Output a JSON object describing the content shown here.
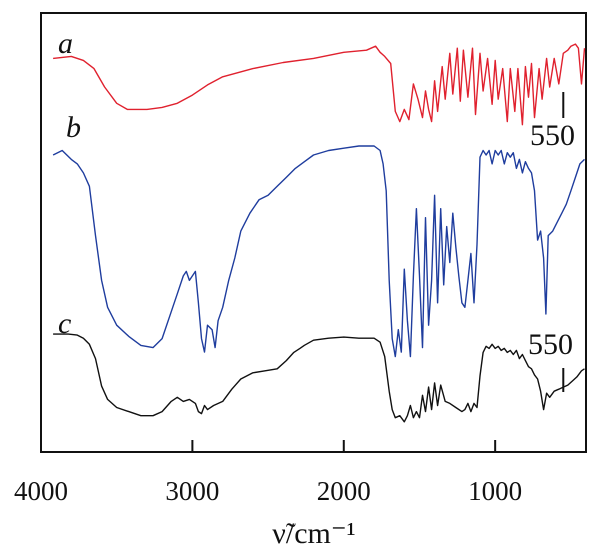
{
  "chart_data": {
    "type": "line",
    "title": "",
    "xlabel": "ν̃/cm⁻¹",
    "ylabel": "",
    "xlim": [
      4000,
      400
    ],
    "x_reversed": true,
    "xticks": [
      {
        "value": 4000,
        "label": "4000"
      },
      {
        "value": 3000,
        "label": "3000"
      },
      {
        "value": 2000,
        "label": "2000"
      },
      {
        "value": 1000,
        "label": "1000"
      }
    ],
    "y_axis": "relative transmittance (curves offset vertically, no scale shown)",
    "grid": false,
    "legend": "none",
    "series": [
      {
        "name": "a",
        "color": "#e0212e",
        "points": [
          [
            3920,
            0.8
          ],
          [
            3800,
            0.82
          ],
          [
            3720,
            0.78
          ],
          [
            3650,
            0.7
          ],
          [
            3580,
            0.52
          ],
          [
            3500,
            0.36
          ],
          [
            3430,
            0.3
          ],
          [
            3300,
            0.3
          ],
          [
            3200,
            0.32
          ],
          [
            3100,
            0.36
          ],
          [
            3000,
            0.44
          ],
          [
            2900,
            0.54
          ],
          [
            2800,
            0.62
          ],
          [
            2600,
            0.7
          ],
          [
            2400,
            0.76
          ],
          [
            2200,
            0.8
          ],
          [
            2000,
            0.86
          ],
          [
            1850,
            0.88
          ],
          [
            1790,
            0.92
          ],
          [
            1760,
            0.86
          ],
          [
            1730,
            0.82
          ],
          [
            1690,
            0.75
          ],
          [
            1660,
            0.28
          ],
          [
            1630,
            0.18
          ],
          [
            1600,
            0.3
          ],
          [
            1570,
            0.2
          ],
          [
            1540,
            0.55
          ],
          [
            1510,
            0.4
          ],
          [
            1480,
            0.22
          ],
          [
            1460,
            0.48
          ],
          [
            1440,
            0.3
          ],
          [
            1420,
            0.18
          ],
          [
            1400,
            0.58
          ],
          [
            1380,
            0.28
          ],
          [
            1350,
            0.72
          ],
          [
            1330,
            0.4
          ],
          [
            1300,
            0.85
          ],
          [
            1280,
            0.45
          ],
          [
            1250,
            0.9
          ],
          [
            1230,
            0.38
          ],
          [
            1210,
            0.88
          ],
          [
            1180,
            0.42
          ],
          [
            1150,
            0.9
          ],
          [
            1130,
            0.25
          ],
          [
            1100,
            0.85
          ],
          [
            1080,
            0.48
          ],
          [
            1050,
            0.8
          ],
          [
            1020,
            0.35
          ],
          [
            1000,
            0.78
          ],
          [
            980,
            0.4
          ],
          [
            950,
            0.7
          ],
          [
            920,
            0.18
          ],
          [
            900,
            0.7
          ],
          [
            870,
            0.28
          ],
          [
            850,
            0.7
          ],
          [
            820,
            0.15
          ],
          [
            800,
            0.72
          ],
          [
            780,
            0.42
          ],
          [
            760,
            0.75
          ],
          [
            740,
            0.22
          ],
          [
            710,
            0.7
          ],
          [
            690,
            0.4
          ],
          [
            660,
            0.8
          ],
          [
            640,
            0.52
          ],
          [
            610,
            0.8
          ],
          [
            580,
            0.55
          ],
          [
            550,
            0.85
          ],
          [
            520,
            0.88
          ],
          [
            500,
            0.92
          ],
          [
            470,
            0.94
          ],
          [
            450,
            0.9
          ],
          [
            430,
            0.55
          ],
          [
            410,
            0.9
          ]
        ]
      },
      {
        "name": "b",
        "color": "#1f3d9e",
        "points": [
          [
            3920,
            0.96
          ],
          [
            3860,
            0.98
          ],
          [
            3800,
            0.94
          ],
          [
            3760,
            0.92
          ],
          [
            3720,
            0.88
          ],
          [
            3680,
            0.82
          ],
          [
            3640,
            0.6
          ],
          [
            3600,
            0.4
          ],
          [
            3560,
            0.28
          ],
          [
            3500,
            0.2
          ],
          [
            3420,
            0.15
          ],
          [
            3340,
            0.11
          ],
          [
            3260,
            0.1
          ],
          [
            3200,
            0.14
          ],
          [
            3140,
            0.26
          ],
          [
            3100,
            0.34
          ],
          [
            3060,
            0.42
          ],
          [
            3040,
            0.44
          ],
          [
            3020,
            0.4
          ],
          [
            3000,
            0.42
          ],
          [
            2980,
            0.44
          ],
          [
            2960,
            0.3
          ],
          [
            2940,
            0.14
          ],
          [
            2920,
            0.08
          ],
          [
            2900,
            0.2
          ],
          [
            2870,
            0.18
          ],
          [
            2850,
            0.1
          ],
          [
            2830,
            0.22
          ],
          [
            2800,
            0.28
          ],
          [
            2760,
            0.4
          ],
          [
            2720,
            0.5
          ],
          [
            2680,
            0.62
          ],
          [
            2620,
            0.7
          ],
          [
            2560,
            0.76
          ],
          [
            2500,
            0.78
          ],
          [
            2440,
            0.82
          ],
          [
            2380,
            0.86
          ],
          [
            2320,
            0.9
          ],
          [
            2260,
            0.93
          ],
          [
            2200,
            0.96
          ],
          [
            2100,
            0.98
          ],
          [
            2000,
            0.99
          ],
          [
            1900,
            1.0
          ],
          [
            1800,
            1.0
          ],
          [
            1760,
            0.98
          ],
          [
            1740,
            0.92
          ],
          [
            1720,
            0.8
          ],
          [
            1700,
            0.4
          ],
          [
            1680,
            0.14
          ],
          [
            1660,
            0.06
          ],
          [
            1640,
            0.18
          ],
          [
            1620,
            0.08
          ],
          [
            1600,
            0.45
          ],
          [
            1580,
            0.22
          ],
          [
            1560,
            0.06
          ],
          [
            1540,
            0.42
          ],
          [
            1520,
            0.72
          ],
          [
            1500,
            0.42
          ],
          [
            1480,
            0.1
          ],
          [
            1460,
            0.68
          ],
          [
            1440,
            0.2
          ],
          [
            1420,
            0.4
          ],
          [
            1400,
            0.78
          ],
          [
            1380,
            0.3
          ],
          [
            1360,
            0.72
          ],
          [
            1340,
            0.38
          ],
          [
            1320,
            0.64
          ],
          [
            1300,
            0.48
          ],
          [
            1280,
            0.7
          ],
          [
            1260,
            0.55
          ],
          [
            1240,
            0.42
          ],
          [
            1220,
            0.3
          ],
          [
            1200,
            0.28
          ],
          [
            1180,
            0.4
          ],
          [
            1160,
            0.52
          ],
          [
            1140,
            0.3
          ],
          [
            1120,
            0.56
          ],
          [
            1100,
            0.95
          ],
          [
            1080,
            0.98
          ],
          [
            1060,
            0.96
          ],
          [
            1040,
            0.98
          ],
          [
            1020,
            0.92
          ],
          [
            1000,
            0.98
          ],
          [
            980,
            0.96
          ],
          [
            960,
            0.98
          ],
          [
            940,
            0.92
          ],
          [
            920,
            0.97
          ],
          [
            900,
            0.95
          ],
          [
            880,
            0.97
          ],
          [
            860,
            0.9
          ],
          [
            840,
            0.94
          ],
          [
            820,
            0.88
          ],
          [
            800,
            0.93
          ],
          [
            780,
            0.9
          ],
          [
            760,
            0.88
          ],
          [
            740,
            0.8
          ],
          [
            720,
            0.58
          ],
          [
            700,
            0.62
          ],
          [
            680,
            0.5
          ],
          [
            665,
            0.25
          ],
          [
            650,
            0.6
          ],
          [
            620,
            0.62
          ],
          [
            590,
            0.66
          ],
          [
            560,
            0.7
          ],
          [
            530,
            0.74
          ],
          [
            500,
            0.8
          ],
          [
            470,
            0.86
          ],
          [
            440,
            0.92
          ],
          [
            410,
            0.94
          ]
        ]
      },
      {
        "name": "c",
        "color": "#111111",
        "points": [
          [
            3920,
            0.96
          ],
          [
            3820,
            0.96
          ],
          [
            3760,
            0.95
          ],
          [
            3720,
            0.92
          ],
          [
            3680,
            0.86
          ],
          [
            3640,
            0.72
          ],
          [
            3600,
            0.45
          ],
          [
            3560,
            0.32
          ],
          [
            3500,
            0.24
          ],
          [
            3420,
            0.2
          ],
          [
            3340,
            0.16
          ],
          [
            3260,
            0.16
          ],
          [
            3200,
            0.2
          ],
          [
            3140,
            0.3
          ],
          [
            3100,
            0.34
          ],
          [
            3060,
            0.3
          ],
          [
            3020,
            0.32
          ],
          [
            2980,
            0.28
          ],
          [
            2960,
            0.2
          ],
          [
            2940,
            0.18
          ],
          [
            2920,
            0.26
          ],
          [
            2900,
            0.22
          ],
          [
            2860,
            0.26
          ],
          [
            2800,
            0.3
          ],
          [
            2740,
            0.42
          ],
          [
            2680,
            0.52
          ],
          [
            2600,
            0.58
          ],
          [
            2520,
            0.6
          ],
          [
            2440,
            0.62
          ],
          [
            2380,
            0.7
          ],
          [
            2330,
            0.78
          ],
          [
            2290,
            0.82
          ],
          [
            2260,
            0.85
          ],
          [
            2200,
            0.9
          ],
          [
            2100,
            0.92
          ],
          [
            2000,
            0.93
          ],
          [
            1900,
            0.92
          ],
          [
            1800,
            0.92
          ],
          [
            1760,
            0.88
          ],
          [
            1730,
            0.74
          ],
          [
            1700,
            0.4
          ],
          [
            1680,
            0.22
          ],
          [
            1660,
            0.14
          ],
          [
            1630,
            0.16
          ],
          [
            1600,
            0.1
          ],
          [
            1580,
            0.16
          ],
          [
            1560,
            0.26
          ],
          [
            1540,
            0.14
          ],
          [
            1520,
            0.2
          ],
          [
            1500,
            0.14
          ],
          [
            1480,
            0.36
          ],
          [
            1460,
            0.2
          ],
          [
            1440,
            0.44
          ],
          [
            1420,
            0.22
          ],
          [
            1400,
            0.48
          ],
          [
            1380,
            0.26
          ],
          [
            1360,
            0.46
          ],
          [
            1330,
            0.3
          ],
          [
            1300,
            0.28
          ],
          [
            1260,
            0.24
          ],
          [
            1220,
            0.2
          ],
          [
            1200,
            0.22
          ],
          [
            1180,
            0.28
          ],
          [
            1160,
            0.2
          ],
          [
            1140,
            0.28
          ],
          [
            1120,
            0.24
          ],
          [
            1100,
            0.55
          ],
          [
            1080,
            0.78
          ],
          [
            1060,
            0.84
          ],
          [
            1040,
            0.82
          ],
          [
            1020,
            0.86
          ],
          [
            1000,
            0.82
          ],
          [
            980,
            0.84
          ],
          [
            960,
            0.8
          ],
          [
            940,
            0.82
          ],
          [
            920,
            0.78
          ],
          [
            900,
            0.8
          ],
          [
            880,
            0.76
          ],
          [
            860,
            0.8
          ],
          [
            840,
            0.72
          ],
          [
            820,
            0.76
          ],
          [
            800,
            0.7
          ],
          [
            780,
            0.64
          ],
          [
            760,
            0.62
          ],
          [
            740,
            0.56
          ],
          [
            720,
            0.52
          ],
          [
            700,
            0.4
          ],
          [
            680,
            0.22
          ],
          [
            660,
            0.38
          ],
          [
            640,
            0.34
          ],
          [
            610,
            0.4
          ],
          [
            580,
            0.42
          ],
          [
            550,
            0.44
          ],
          [
            520,
            0.46
          ],
          [
            490,
            0.5
          ],
          [
            460,
            0.54
          ],
          [
            430,
            0.6
          ],
          [
            410,
            0.62
          ]
        ]
      }
    ],
    "annotations": [
      {
        "series": "a",
        "text": "550",
        "x": 550
      },
      {
        "series": "c",
        "text": "550",
        "x": 550
      }
    ]
  }
}
